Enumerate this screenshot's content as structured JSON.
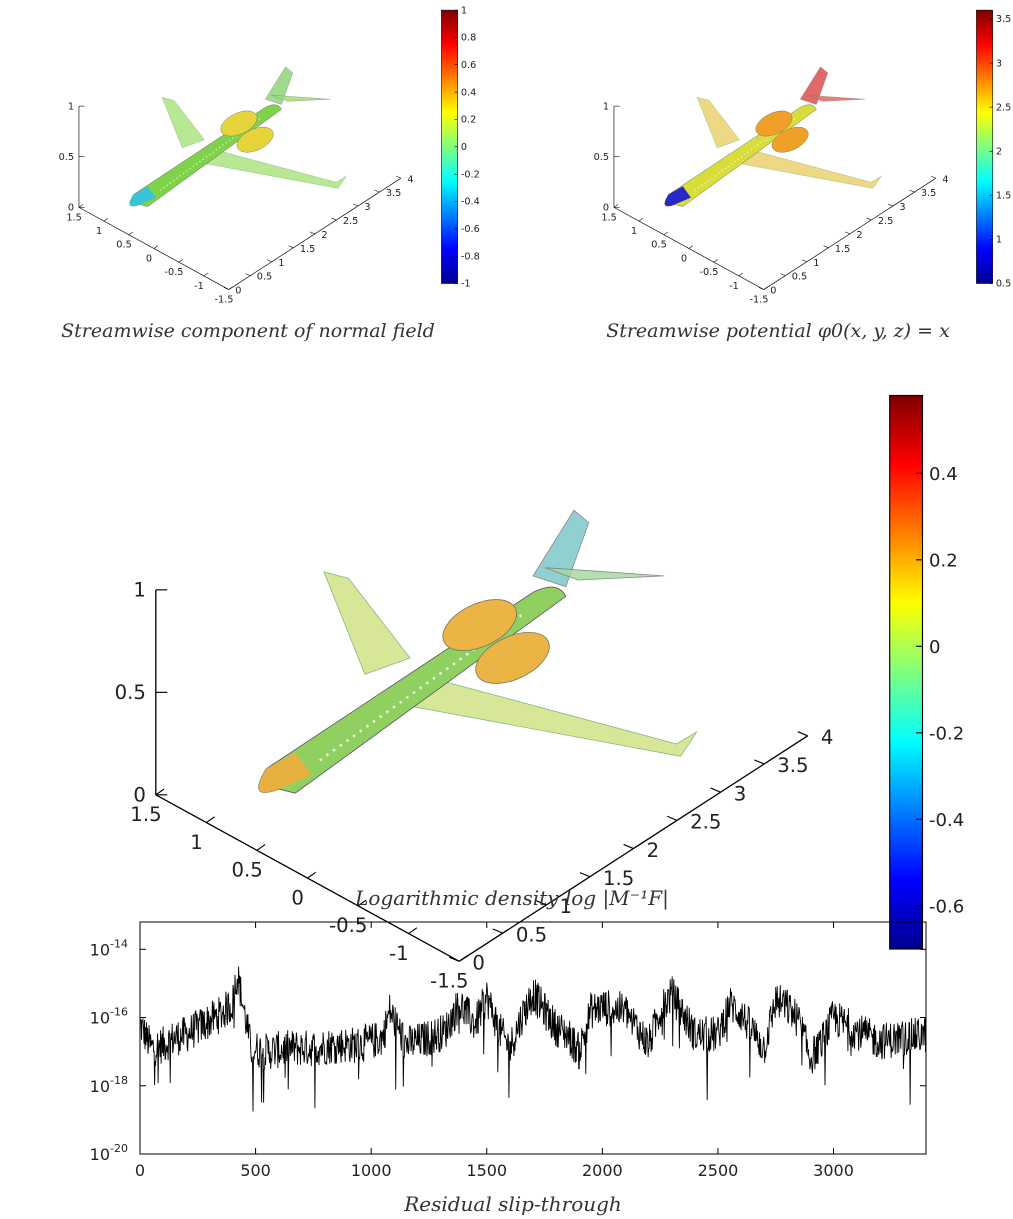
{
  "panels": [
    {
      "caption": "Streamwise component of normal field",
      "z_ticks": [
        "0",
        "0.5",
        "1"
      ],
      "x_ticks": [
        "1.5",
        "1",
        "0.5",
        "0",
        "-0.5",
        "-1",
        "-1.5"
      ],
      "y_ticks": [
        "0",
        "0.5",
        "1",
        "1.5",
        "2",
        "2.5",
        "3",
        "3.5",
        "4"
      ],
      "colorbar": {
        "min": -1,
        "max": 1,
        "ticks": [
          "-1",
          "-0.8",
          "-0.6",
          "-0.4",
          "-0.2",
          "0",
          "0.2",
          "0.4",
          "0.6",
          "0.8",
          "1"
        ]
      },
      "colors": {
        "fuselage": "#7fd24a",
        "nose": "#39c4d6",
        "wing": "#a8e37a",
        "engine": "#e6d43a",
        "tail": "#9fdf78",
        "fin": "#8fd47a"
      }
    },
    {
      "caption": "Streamwise potential φ0(x, y, z) = x",
      "z_ticks": [
        "0",
        "0.5",
        "1"
      ],
      "x_ticks": [
        "1.5",
        "1",
        "0.5",
        "0",
        "-0.5",
        "-1",
        "-1.5"
      ],
      "y_ticks": [
        "0",
        "0.5",
        "1",
        "1.5",
        "2",
        "2.5",
        "3",
        "3.5",
        "4"
      ],
      "colorbar": {
        "min": 0.5,
        "max": 3.6,
        "ticks": [
          "0.5",
          "1",
          "1.5",
          "2",
          "2.5",
          "3",
          "3.5"
        ]
      },
      "colors": {
        "fuselage": "#d8dd3a",
        "nose": "#2828c8",
        "wing": "#eccf66",
        "engine": "#f0a028",
        "tail": "#e46a5c",
        "fin": "#dd5050"
      }
    },
    {
      "caption": "Logarithmic density log |M⁻¹F|",
      "z_ticks": [
        "0",
        "0.5",
        "1"
      ],
      "x_ticks": [
        "1.5",
        "1",
        "0.5",
        "0",
        "-0.5",
        "-1",
        "-1.5"
      ],
      "y_ticks": [
        "0",
        "0.5",
        "1",
        "1.5",
        "2",
        "2.5",
        "3",
        "3.5",
        "4"
      ],
      "colorbar": {
        "min": -0.7,
        "max": 0.58,
        "ticks": [
          "-0.6",
          "-0.4",
          "-0.2",
          "0",
          "0.2",
          "0.4"
        ]
      },
      "colors": {
        "fuselage": "#8fd060",
        "nose": "#e8b040",
        "wing": "#cfe27e",
        "engine": "#ecb444",
        "tail": "#a6dca0",
        "fin": "#7ec8c8"
      }
    }
  ],
  "chart_data": {
    "type": "line",
    "title": "Residual slip-through",
    "xlabel": "",
    "ylabel": "",
    "xlim": [
      0,
      3400
    ],
    "ylim_log10": [
      -20,
      -13.2
    ],
    "yscale": "log",
    "x_ticks": [
      0,
      500,
      1000,
      1500,
      2000,
      2500,
      3000
    ],
    "y_ticks": [
      {
        "base": "10",
        "exp": "-20",
        "value": -20
      },
      {
        "base": "10",
        "exp": "-18",
        "value": -18
      },
      {
        "base": "10",
        "exp": "-16",
        "value": -16
      },
      {
        "base": "10",
        "exp": "-14",
        "value": -14
      }
    ],
    "series": [
      {
        "color": "#000000",
        "x": [
          0,
          50,
          100,
          150,
          200,
          250,
          300,
          350,
          400,
          420,
          480,
          550,
          650,
          750,
          850,
          950,
          1050,
          1080,
          1150,
          1250,
          1320,
          1380,
          1450,
          1500,
          1550,
          1600,
          1650,
          1700,
          1750,
          1800,
          1850,
          1900,
          1950,
          2000,
          2100,
          2200,
          2250,
          2300,
          2400,
          2500,
          2550,
          2600,
          2700,
          2750,
          2800,
          2850,
          2900,
          2950,
          3000,
          3100,
          3200,
          3300,
          3400
        ],
        "log10_y": [
          -16.2,
          -16.9,
          -16.8,
          -16.6,
          -16.5,
          -16.3,
          -16.1,
          -15.9,
          -15.6,
          -14.7,
          -16.9,
          -17.0,
          -16.9,
          -16.9,
          -16.8,
          -16.8,
          -16.6,
          -15.8,
          -16.8,
          -16.6,
          -16.4,
          -15.6,
          -16.2,
          -15.4,
          -16.3,
          -16.9,
          -16.0,
          -15.3,
          -15.8,
          -16.3,
          -16.5,
          -17.0,
          -15.8,
          -15.7,
          -15.8,
          -16.8,
          -15.8,
          -15.3,
          -16.5,
          -16.5,
          -15.6,
          -15.9,
          -16.9,
          -15.5,
          -15.7,
          -16.1,
          -17.2,
          -16.7,
          -16.0,
          -16.4,
          -16.7,
          -16.6,
          -16.5
        ]
      }
    ]
  }
}
